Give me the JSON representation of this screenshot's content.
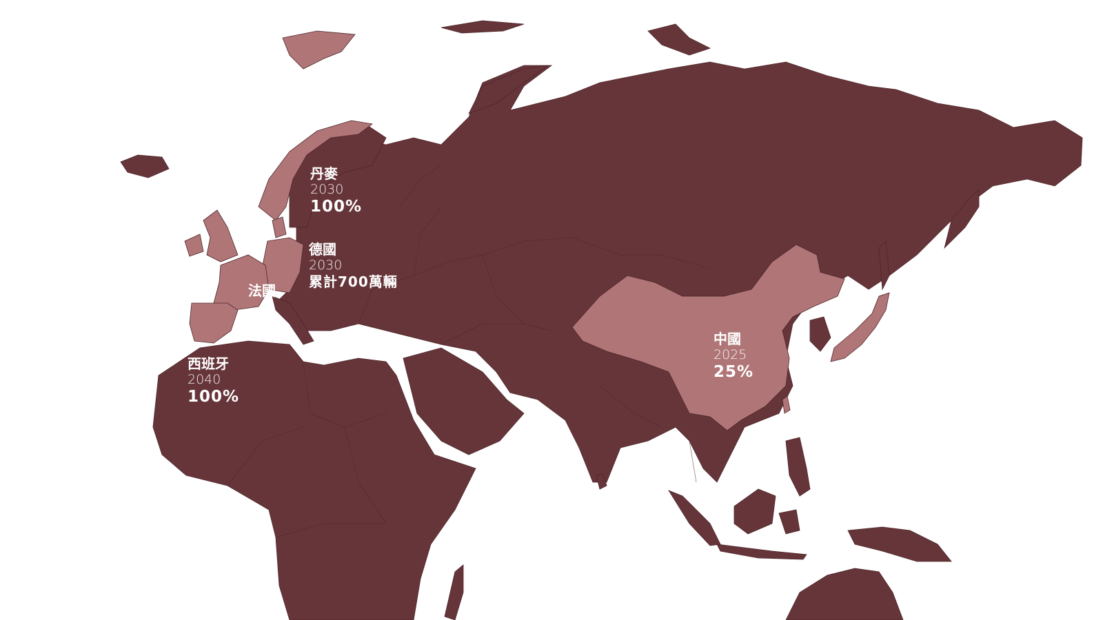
{
  "colors": {
    "background": "#ffffff",
    "region_default": "#66353a",
    "region_highlight": "#b07677",
    "label_text": "#ffffff"
  },
  "labels": {
    "denmark": {
      "name": "丹麥",
      "year": "2030",
      "value": "100%"
    },
    "germany": {
      "name": "德國",
      "year": "2030",
      "value": "累計700萬輛"
    },
    "france": {
      "name": "法國"
    },
    "spain": {
      "name": "西班牙",
      "year": "2040",
      "value": "100%"
    },
    "china": {
      "name": "中國",
      "year": "2025",
      "value": "25%"
    }
  }
}
